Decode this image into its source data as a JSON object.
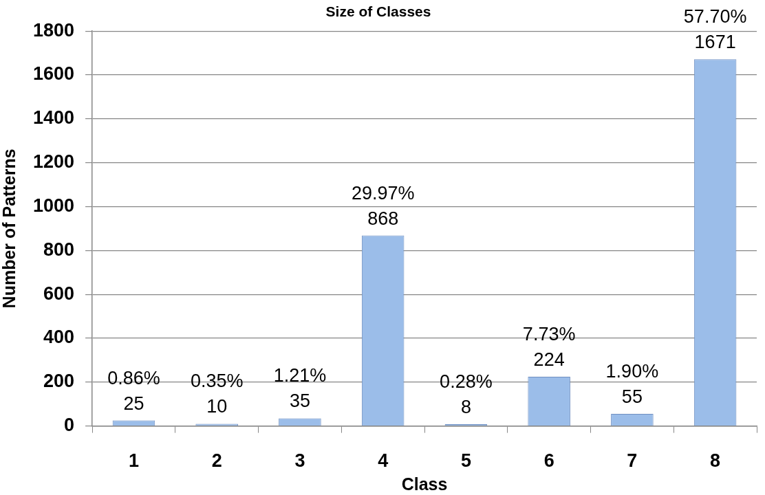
{
  "chart_data": {
    "type": "bar",
    "title": "Size of Classes",
    "xlabel": "Class",
    "ylabel": "Number of Patterns",
    "categories": [
      "1",
      "2",
      "3",
      "4",
      "5",
      "6",
      "7",
      "8"
    ],
    "values": [
      25,
      10,
      35,
      868,
      8,
      224,
      55,
      1671
    ],
    "color": "#9bbde9",
    "ylim": [
      0,
      1800
    ],
    "yticks": [
      0,
      200,
      400,
      600,
      800,
      1000,
      1200,
      1400,
      1600,
      1800
    ],
    "grid": "y",
    "data_labels": true,
    "annotations": [
      {
        "text": "0.86%",
        "x": "1",
        "y": 25
      },
      {
        "text": "0.35%",
        "x": "2",
        "y": 10
      },
      {
        "text": "1.21%",
        "x": "3",
        "y": 35
      },
      {
        "text": "29.97%",
        "x": "4",
        "y": 868
      },
      {
        "text": "0.28%",
        "x": "5",
        "y": 8
      },
      {
        "text": "7.73%",
        "x": "6",
        "y": 224
      },
      {
        "text": "1.90%",
        "x": "7",
        "y": 55
      },
      {
        "text": "57.70%",
        "x": "8",
        "y": 1671
      }
    ]
  }
}
